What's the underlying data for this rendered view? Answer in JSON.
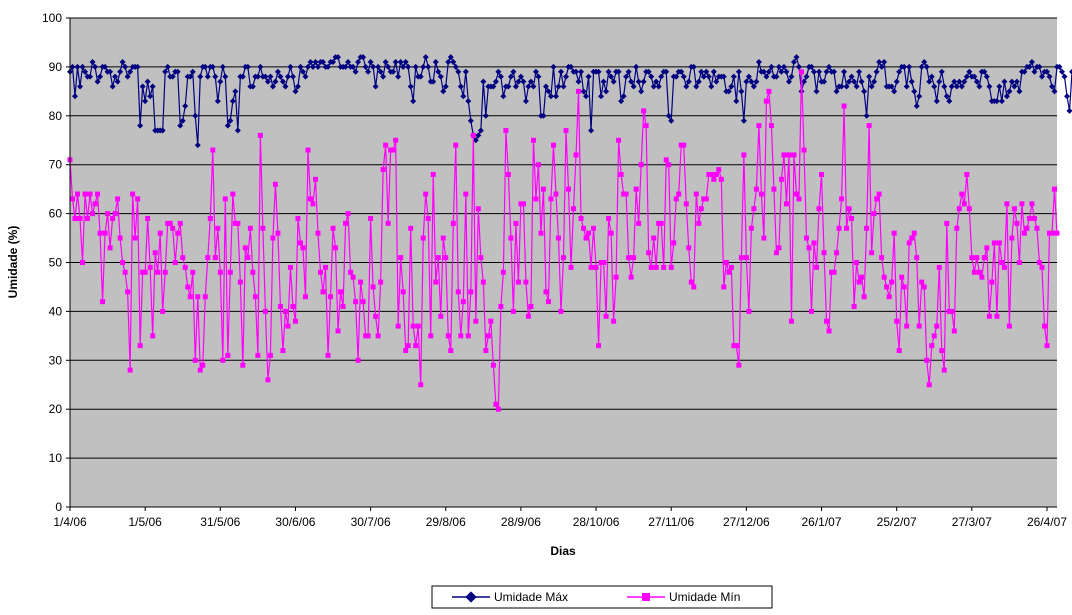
{
  "chart_data": {
    "type": "line",
    "title": "",
    "xlabel": "Dias",
    "ylabel": "Umidade (%)",
    "ylim": [
      0,
      100
    ],
    "ytick_step": 10,
    "x_start": "2006-04-01",
    "x_end": "2007-04-30",
    "xtick_dates": [
      "2006-04-01",
      "2006-05-01",
      "2006-05-31",
      "2006-06-30",
      "2006-07-30",
      "2006-08-29",
      "2006-09-28",
      "2006-10-28",
      "2006-11-27",
      "2006-12-27",
      "2007-01-26",
      "2007-02-25",
      "2007-03-27",
      "2007-04-26"
    ],
    "xtick_labels": [
      "1/4/06",
      "1/5/06",
      "31/5/06",
      "30/6/06",
      "30/7/06",
      "29/8/06",
      "28/9/06",
      "28/10/06",
      "27/11/06",
      "27/12/06",
      "26/1/07",
      "25/2/07",
      "27/3/07",
      "26/4/07"
    ],
    "grid": "horizontal",
    "plot_background": "#c0c0c0",
    "legend_position": "bottom-center",
    "series": [
      {
        "name": "Umidade Máx",
        "color": "#000080",
        "marker": "diamond",
        "values": [
          89,
          90,
          84,
          90,
          86,
          90,
          89,
          88,
          88,
          91,
          90,
          87,
          88,
          90,
          90,
          89,
          89,
          86,
          88,
          87,
          89,
          91,
          90,
          88,
          89,
          90,
          90,
          90,
          78,
          86,
          83,
          87,
          84,
          86,
          77,
          77,
          77,
          77,
          89,
          90,
          88,
          88,
          89,
          89,
          78,
          79,
          82,
          88,
          88,
          89,
          80,
          74,
          88,
          90,
          90,
          88,
          90,
          90,
          88,
          83,
          87,
          90,
          88,
          78,
          79,
          83,
          85,
          77,
          88,
          88,
          90,
          90,
          86,
          86,
          88,
          88,
          90,
          88,
          88,
          87,
          88,
          86,
          87,
          89,
          88,
          87,
          86,
          88,
          90,
          88,
          85,
          86,
          90,
          89,
          88,
          90,
          91,
          90,
          91,
          90,
          91,
          91,
          90,
          90,
          91,
          91,
          92,
          92,
          90,
          90,
          90,
          91,
          90,
          90,
          89,
          91,
          92,
          92,
          90,
          89,
          91,
          90,
          86,
          90,
          89,
          88,
          91,
          90,
          89,
          89,
          91,
          88,
          91,
          90,
          91,
          90,
          86,
          83,
          90,
          88,
          88,
          90,
          92,
          90,
          87,
          87,
          91,
          89,
          88,
          85,
          86,
          91,
          92,
          91,
          90,
          89,
          86,
          84,
          89,
          83,
          79,
          76,
          75,
          76,
          77,
          87,
          80,
          86,
          86,
          86,
          87,
          89,
          88,
          84,
          86,
          86,
          88,
          89,
          86,
          87,
          88,
          87,
          83,
          86,
          87,
          86,
          89,
          88,
          80,
          80,
          86,
          85,
          84,
          90,
          84,
          86,
          89,
          86,
          88,
          90,
          90,
          89,
          89,
          87,
          89,
          85,
          84,
          88,
          77,
          89,
          89,
          89,
          84,
          87,
          85,
          89,
          88,
          87,
          89,
          89,
          83,
          84,
          88,
          89,
          87,
          86,
          90,
          87,
          85,
          87,
          89,
          89,
          88,
          86,
          87,
          86,
          88,
          89,
          89,
          80,
          79,
          88,
          88,
          89,
          89,
          88,
          86,
          87,
          90,
          90,
          86,
          87,
          89,
          88,
          89,
          88,
          86,
          89,
          87,
          88,
          88,
          88,
          85,
          85,
          86,
          88,
          83,
          89,
          85,
          79,
          87,
          88,
          87,
          86,
          87,
          91,
          89,
          89,
          88,
          89,
          90,
          88,
          88,
          90,
          89,
          90,
          89,
          87,
          88,
          91,
          92,
          90,
          85,
          87,
          88,
          90,
          90,
          89,
          85,
          89,
          87,
          87,
          89,
          90,
          89,
          89,
          85,
          86,
          86,
          89,
          86,
          87,
          88,
          87,
          86,
          89,
          87,
          85,
          80,
          88,
          86,
          87,
          89,
          91,
          90,
          91,
          86,
          86,
          86,
          85,
          87,
          89,
          90,
          90,
          86,
          90,
          87,
          85,
          82,
          84,
          90,
          91,
          90,
          87,
          88,
          86,
          83,
          87,
          89,
          86,
          84,
          83,
          86,
          87,
          86,
          87,
          86,
          87,
          88,
          89,
          88,
          88,
          87,
          86,
          89,
          89,
          88,
          86,
          83,
          83,
          83,
          86,
          83,
          87,
          84,
          85,
          87,
          86,
          87,
          85,
          89,
          89,
          90,
          90,
          91,
          89,
          90,
          90,
          88,
          89,
          89,
          88,
          86,
          85,
          90,
          90,
          89,
          88,
          84,
          81,
          89,
          89,
          90,
          88,
          88,
          86,
          88,
          87,
          90,
          91,
          89,
          90,
          91,
          90,
          88,
          89,
          86,
          86,
          89,
          88,
          89,
          90,
          90
        ]
      },
      {
        "name": "Umidade Mín",
        "color": "#ff00ff",
        "marker": "square",
        "values": [
          71,
          63,
          59,
          64,
          59,
          50,
          64,
          59,
          64,
          60,
          62,
          64,
          56,
          42,
          56,
          60,
          53,
          59,
          60,
          63,
          55,
          50,
          48,
          44,
          28,
          64,
          55,
          63,
          33,
          48,
          48,
          59,
          49,
          35,
          52,
          48,
          56,
          40,
          48,
          58,
          58,
          57,
          50,
          56,
          58,
          51,
          49,
          45,
          43,
          48,
          30,
          43,
          28,
          29,
          43,
          51,
          59,
          73,
          51,
          57,
          48,
          30,
          63,
          31,
          48,
          64,
          58,
          58,
          46,
          29,
          53,
          51,
          57,
          48,
          43,
          31,
          76,
          57,
          40,
          26,
          31,
          55,
          66,
          56,
          41,
          32,
          40,
          37,
          49,
          41,
          38,
          59,
          54,
          53,
          43,
          73,
          63,
          62,
          67,
          56,
          48,
          44,
          49,
          31,
          43,
          57,
          53,
          36,
          44,
          41,
          58,
          60,
          48,
          47,
          42,
          30,
          46,
          42,
          35,
          35,
          59,
          45,
          39,
          35,
          46,
          69,
          74,
          58,
          73,
          73,
          75,
          37,
          51,
          44,
          32,
          33,
          57,
          37,
          33,
          37,
          25,
          55,
          64,
          59,
          35,
          68,
          46,
          51,
          39,
          55,
          51,
          35,
          32,
          58,
          74,
          44,
          35,
          42,
          64,
          35,
          44,
          76,
          38,
          61,
          51,
          46,
          32,
          35,
          38,
          29,
          21,
          20,
          41,
          48,
          77,
          68,
          55,
          40,
          58,
          46,
          62,
          62,
          46,
          39,
          41,
          75,
          63,
          70,
          56,
          65,
          44,
          42,
          63,
          74,
          64,
          55,
          40,
          51,
          77,
          65,
          49,
          61,
          72,
          85,
          59,
          57,
          55,
          56,
          49,
          57,
          49,
          33,
          50,
          50,
          39,
          59,
          56,
          38,
          47,
          75,
          68,
          64,
          64,
          51,
          47,
          51,
          65,
          58,
          70,
          81,
          78,
          52,
          49,
          55,
          49,
          58,
          58,
          49,
          71,
          70,
          49,
          54,
          63,
          64,
          74,
          74,
          62,
          53,
          46,
          45,
          64,
          58,
          61,
          63,
          63,
          68,
          68,
          67,
          68,
          69,
          67,
          45,
          50,
          48,
          49,
          33,
          33,
          29,
          51,
          72,
          51,
          40,
          57,
          61,
          65,
          78,
          64,
          55,
          83,
          85,
          78,
          65,
          52,
          53,
          67,
          72,
          62,
          72,
          38,
          72,
          64,
          63,
          89,
          73,
          55,
          53,
          40,
          54,
          49,
          61,
          68,
          52,
          38,
          36,
          48,
          48,
          52,
          57,
          63,
          82,
          57,
          61,
          59,
          41,
          50,
          46,
          47,
          43,
          57,
          78,
          52,
          60,
          63,
          64,
          51,
          47,
          45,
          43,
          46,
          56,
          38,
          32,
          47,
          45,
          37,
          54,
          55,
          56,
          51,
          37,
          46,
          45,
          30,
          25,
          33,
          35,
          37,
          49,
          32,
          28,
          58,
          40,
          40,
          36,
          57,
          61,
          64,
          62,
          68,
          61,
          51,
          48,
          51,
          48,
          47,
          51,
          53,
          39,
          46,
          54,
          39,
          54,
          50,
          49,
          62,
          37,
          55,
          61,
          58,
          50,
          62,
          56,
          57,
          59,
          62,
          59,
          57,
          50,
          49,
          37,
          33,
          56,
          56,
          65,
          56
        ]
      }
    ]
  }
}
